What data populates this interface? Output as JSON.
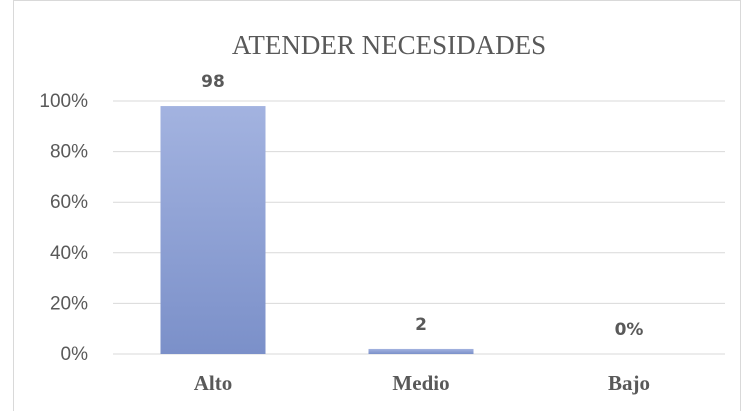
{
  "chart_data": {
    "type": "bar",
    "title": "ATENDER NECESIDADES",
    "categories": [
      "Alto",
      "Medio",
      "Bajo"
    ],
    "values": [
      98,
      2,
      0
    ],
    "value_labels": [
      "98",
      "2",
      "0%"
    ],
    "color": "#8fa2d6",
    "ylim": [
      0,
      100
    ],
    "yticks": [
      {
        "value": 0,
        "label": "0%"
      },
      {
        "value": 20,
        "label": "20%"
      },
      {
        "value": 40,
        "label": "40%"
      },
      {
        "value": 60,
        "label": "60%"
      },
      {
        "value": 80,
        "label": "80%"
      },
      {
        "value": 100,
        "label": "100%"
      }
    ],
    "grid": true
  }
}
